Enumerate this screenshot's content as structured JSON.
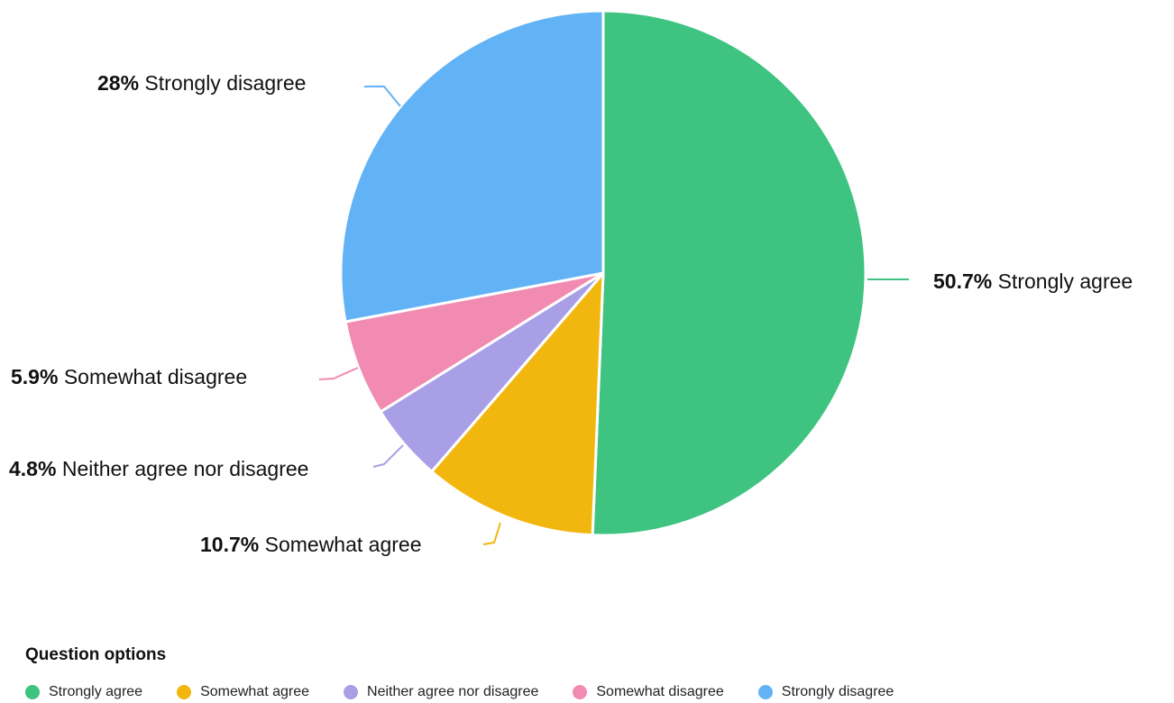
{
  "chart_data": {
    "type": "pie",
    "categories": [
      "Strongly agree",
      "Somewhat agree",
      "Neither agree nor disagree",
      "Somewhat disagree",
      "Strongly disagree"
    ],
    "values": [
      50.7,
      10.7,
      4.8,
      5.9,
      28
    ],
    "value_labels": [
      "50.7%",
      "10.7%",
      "4.8%",
      "5.9%",
      "28%"
    ],
    "colors": [
      "#3fc380",
      "#f2b70f",
      "#a99fe6",
      "#f28bb1",
      "#62b3f5"
    ],
    "start_angle": "12 o'clock",
    "direction": "clockwise",
    "legend_position": "bottom",
    "legend_title": "Question options"
  }
}
